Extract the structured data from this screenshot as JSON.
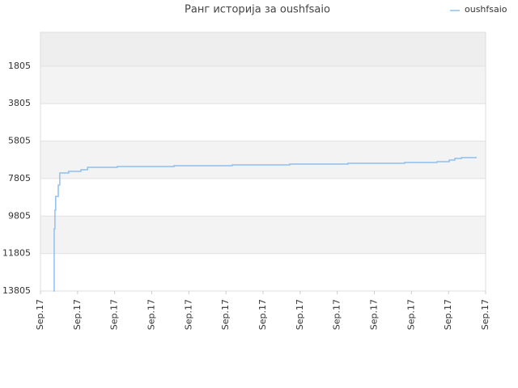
{
  "chart_data": {
    "type": "line",
    "title": "Ранг историја за oushfsaio",
    "x": [
      0.35,
      0.37,
      0.39,
      0.41,
      0.48,
      0.52,
      0.76,
      1.09,
      1.27,
      2.07,
      3.6,
      5.17,
      6.72,
      8.29,
      9.82,
      10.69,
      11.02,
      11.17,
      11.35,
      11.74
    ],
    "series": [
      {
        "name": "oushfsaio",
        "color": "#90c0f0",
        "values": [
          13805,
          10483,
          9491,
          8757,
          8154,
          7507,
          7420,
          7334,
          7205,
          7161,
          7118,
          7075,
          7032,
          6989,
          6946,
          6903,
          6816,
          6730,
          6687,
          6644
        ]
      }
    ],
    "xlim": [
      0,
      12
    ],
    "xticks": [
      {
        "value": 0,
        "label": "Sep.17"
      },
      {
        "value": 1,
        "label": "Sep.17"
      },
      {
        "value": 2,
        "label": "Sep.17"
      },
      {
        "value": 3,
        "label": "Sep.17"
      },
      {
        "value": 4,
        "label": "Sep.17"
      },
      {
        "value": 5,
        "label": "Sep.17"
      },
      {
        "value": 6,
        "label": "Sep.17"
      },
      {
        "value": 7,
        "label": "Sep.17"
      },
      {
        "value": 8,
        "label": "Sep.17"
      },
      {
        "value": 9,
        "label": "Sep.17"
      },
      {
        "value": 10,
        "label": "Sep.17"
      },
      {
        "value": 11,
        "label": "Sep.17"
      },
      {
        "value": 12,
        "label": "Sep.17"
      }
    ],
    "ylim": [
      13805,
      0
    ],
    "yticks": [
      1805,
      3805,
      5805,
      7805,
      9805,
      11805,
      13805
    ],
    "grid": true,
    "step": true,
    "legend": "top-right"
  }
}
